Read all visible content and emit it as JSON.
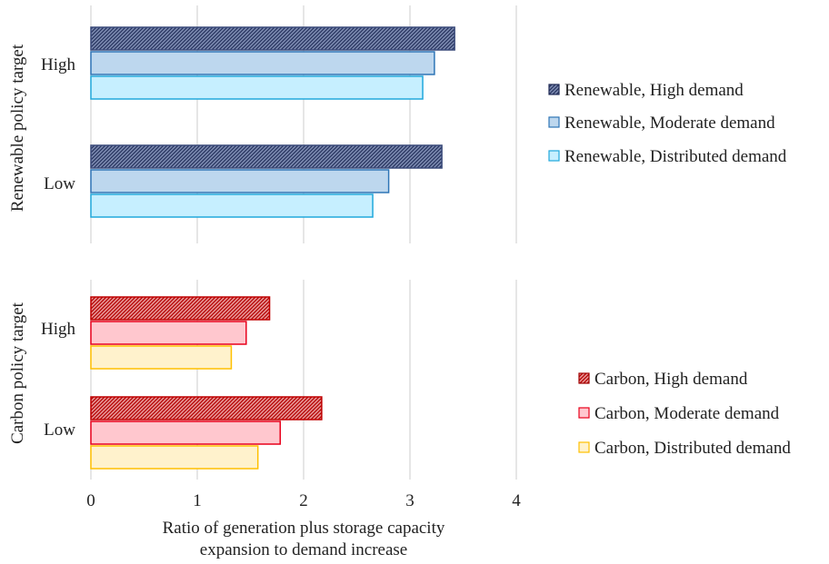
{
  "chart_data": [
    {
      "type": "bar",
      "orientation": "horizontal",
      "ylabel": "Renewable policy target",
      "categories": [
        "High",
        "Low"
      ],
      "series": [
        {
          "name": "Renewable, High demand",
          "values": [
            3.42,
            3.3
          ],
          "color": "#3a4a7a",
          "pattern": "hatched"
        },
        {
          "name": "Renewable, Moderate demand",
          "values": [
            3.23,
            2.8
          ],
          "color": "#bdd7ee",
          "border": "#2e75b6"
        },
        {
          "name": "Renewable, Distributed demand",
          "values": [
            3.12,
            2.65
          ],
          "color": "#c6efff",
          "border": "#20a8dc"
        }
      ],
      "xlim": [
        0,
        4
      ],
      "grid": true,
      "legend_position": "right"
    },
    {
      "type": "bar",
      "orientation": "horizontal",
      "ylabel": "Carbon policy target",
      "xlabel": "Ratio of generation plus storage capacity expansion to demand increase",
      "xlabel_lines": [
        "Ratio of generation plus storage capacity",
        "expansion to demand increase"
      ],
      "categories": [
        "High",
        "Low"
      ],
      "series": [
        {
          "name": "Carbon, High demand",
          "values": [
            1.68,
            2.17
          ],
          "color": "#c00000",
          "pattern": "hatched"
        },
        {
          "name": "Carbon, Moderate demand",
          "values": [
            1.46,
            1.78
          ],
          "color": "#ffc7ce",
          "border": "#e8001c"
        },
        {
          "name": "Carbon, Distributed demand",
          "values": [
            1.32,
            1.57
          ],
          "color": "#fff2cc",
          "border": "#ffc000"
        }
      ],
      "xlim": [
        0,
        4
      ],
      "xticks": [
        "0",
        "1",
        "2",
        "3",
        "4"
      ],
      "grid": true,
      "legend_position": "right"
    }
  ]
}
